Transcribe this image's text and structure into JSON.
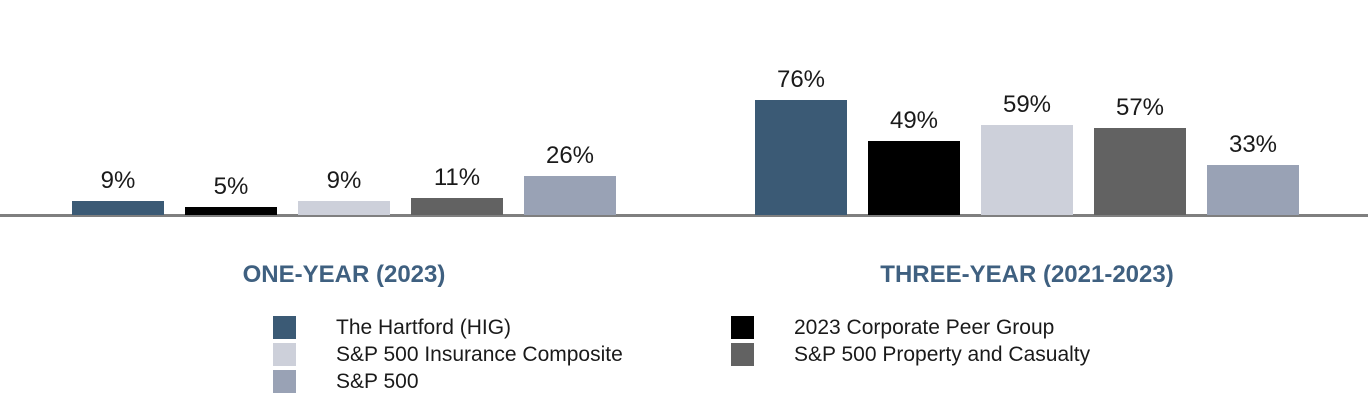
{
  "chart_data": {
    "type": "bar",
    "unit": "%",
    "ylim": [
      0,
      80
    ],
    "grid": false,
    "legend_position": "bottom",
    "series": [
      {
        "name": "The Hartford (HIG)",
        "color": "#3b5a75"
      },
      {
        "name": "2023 Corporate Peer Group",
        "color": "#000000"
      },
      {
        "name": "S&P 500 Insurance Composite",
        "color": "#cdd0da"
      },
      {
        "name": "S&P 500 Property and Casualty",
        "color": "#626262"
      },
      {
        "name": "S&P 500",
        "color": "#99a2b5"
      }
    ],
    "groups": [
      {
        "label": "ONE-YEAR (2023)",
        "values": [
          9,
          5,
          9,
          11,
          26
        ],
        "value_labels": [
          "9%",
          "5%",
          "9%",
          "11%",
          "26%"
        ]
      },
      {
        "label": "THREE-YEAR (2021-2023)",
        "values": [
          76,
          49,
          59,
          57,
          33
        ],
        "value_labels": [
          "76%",
          "49%",
          "59%",
          "57%",
          "33%"
        ]
      }
    ]
  },
  "legend": {
    "columns": [
      [
        0,
        2,
        4
      ],
      [
        1,
        3
      ]
    ]
  },
  "style": {
    "background": "#ffffff",
    "axis_line_color": "#7f7f7f",
    "group_title_color": "#3f6080",
    "value_label_color": "#1a1a1a",
    "legend_text_color": "#1a1a1a"
  }
}
